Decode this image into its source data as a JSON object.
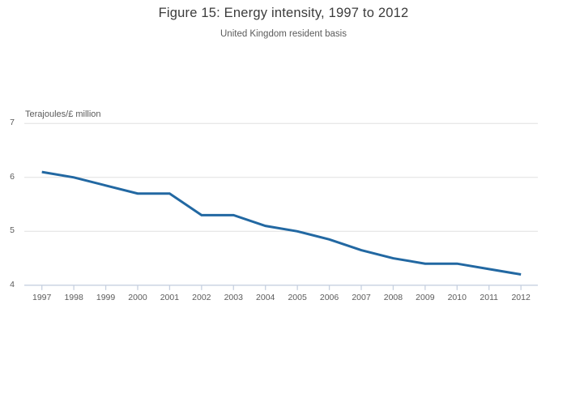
{
  "chart_data": {
    "type": "line",
    "title": "Figure 15: Energy intensity, 1997 to 2012",
    "subtitle": "United Kingdom resident basis",
    "ylabel": "Terajoules/£ million",
    "xlabel": "",
    "x": [
      1997,
      1998,
      1999,
      2000,
      2001,
      2002,
      2003,
      2004,
      2005,
      2006,
      2007,
      2008,
      2009,
      2010,
      2011,
      2012
    ],
    "values": [
      6.1,
      6.0,
      5.85,
      5.7,
      5.7,
      5.3,
      5.3,
      5.1,
      5.0,
      4.85,
      4.65,
      4.5,
      4.4,
      4.4,
      4.3,
      4.2
    ],
    "ylim": [
      4,
      7
    ],
    "yticks": [
      4,
      5,
      6,
      7
    ],
    "xtick_labels": [
      "1997",
      "1998",
      "1999",
      "2000",
      "2001",
      "2002",
      "2003",
      "2004",
      "2005",
      "2006",
      "2007",
      "2008",
      "2009",
      "2010",
      "2011",
      "2012"
    ],
    "grid": "horizontal",
    "legend": "none",
    "line_color": "#2268a2"
  }
}
